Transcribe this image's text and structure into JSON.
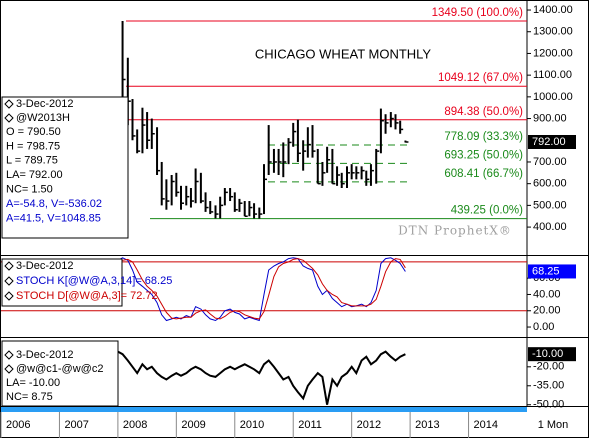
{
  "chart_data": [
    {
      "type": "ohlc",
      "title": "CHICAGO WHEAT MONTHLY",
      "watermark": "DTN ProphetX®",
      "date": "3-Dec-2012",
      "symbol": "@W2013H",
      "notes": [
        "O = 790.50",
        "H = 798.75",
        "L = 789.75",
        "LA= 792.00",
        "NC= 1.50",
        "A=-54.8, V=-536.02",
        "A=41.5, V=1048.85"
      ],
      "color": "#000000",
      "x": [
        2007.67,
        2007.75,
        2007.83,
        2007.92,
        2008.0,
        2008.08,
        2008.17,
        2008.25,
        2008.33,
        2008.42,
        2008.5,
        2008.58,
        2008.67,
        2008.75,
        2008.83,
        2008.92,
        2009.0,
        2009.08,
        2009.17,
        2009.25,
        2009.33,
        2009.42,
        2009.5,
        2009.58,
        2009.67,
        2009.75,
        2009.83,
        2009.92,
        2010.0,
        2010.08,
        2010.17,
        2010.25,
        2010.33,
        2010.42,
        2010.5,
        2010.58,
        2010.67,
        2010.75,
        2010.83,
        2010.92,
        2011.0,
        2011.08,
        2011.17,
        2011.25,
        2011.33,
        2011.42,
        2011.5,
        2011.58,
        2011.67,
        2011.75,
        2011.83,
        2011.92,
        2012.0,
        2012.08,
        2012.17,
        2012.25,
        2012.33,
        2012.42,
        2012.5,
        2012.58,
        2012.67,
        2012.75,
        2012.83,
        2012.92
      ],
      "high": [
        960,
        950,
        900,
        960,
        980,
        1349.5,
        1180,
        990,
        850,
        950,
        930,
        900,
        860,
        700,
        620,
        640,
        650,
        590,
        590,
        580,
        670,
        650,
        560,
        520,
        500,
        540,
        580,
        580,
        560,
        530,
        520,
        520,
        510,
        490,
        690,
        870,
        760,
        760,
        790,
        810,
        880,
        895,
        800,
        860,
        870,
        760,
        700,
        770,
        760,
        680,
        650,
        680,
        690,
        680,
        680,
        660,
        690,
        760,
        946,
        920,
        930,
        920,
        890,
        798.75
      ],
      "low": [
        820,
        830,
        820,
        850,
        870,
        900,
        870,
        800,
        740,
        740,
        760,
        760,
        640,
        500,
        480,
        500,
        540,
        480,
        500,
        490,
        510,
        510,
        470,
        460,
        440,
        440,
        500,
        520,
        470,
        470,
        450,
        450,
        440,
        439.25,
        460,
        640,
        650,
        640,
        630,
        690,
        770,
        700,
        660,
        720,
        720,
        600,
        590,
        650,
        600,
        590,
        580,
        580,
        620,
        620,
        620,
        590,
        590,
        600,
        740,
        830,
        860,
        850,
        830,
        789.75
      ],
      "close": [
        930,
        860,
        870,
        885,
        920,
        1080,
        980,
        820,
        750,
        870,
        800,
        830,
        660,
        530,
        520,
        610,
        560,
        510,
        540,
        520,
        610,
        520,
        490,
        470,
        460,
        500,
        560,
        540,
        480,
        510,
        450,
        490,
        460,
        460,
        620,
        700,
        700,
        700,
        700,
        790,
        840,
        740,
        750,
        780,
        750,
        600,
        650,
        710,
        600,
        640,
        600,
        650,
        650,
        650,
        660,
        620,
        660,
        750,
        890,
        880,
        900,
        880,
        850,
        792
      ],
      "ylim": [
        276,
        1437
      ],
      "yticks": [
        {
          "value": 1400,
          "label": "1400.00"
        },
        {
          "value": 1300,
          "label": "1300.00"
        },
        {
          "value": 1200,
          "label": "1200.00"
        },
        {
          "value": 1100,
          "label": "1100.00"
        },
        {
          "value": 1000,
          "label": "1000.00"
        },
        {
          "value": 900,
          "label": "900.00"
        },
        {
          "value": 700,
          "label": "700.00"
        },
        {
          "value": 600,
          "label": "600.00"
        },
        {
          "value": 500,
          "label": "500.00"
        },
        {
          "value": 400,
          "label": "400.00"
        }
      ],
      "levels": [
        {
          "value": 1349.5,
          "label": "1349.50 (100.0%)",
          "color": "#e8001c",
          "style": "solid"
        },
        {
          "value": 1049.12,
          "label": "1049.12 (67.0%)",
          "color": "#e8001c",
          "style": "solid"
        },
        {
          "value": 894.38,
          "label": "894.38 (50.0%)",
          "color": "#e8001c",
          "style": "solid"
        },
        {
          "value": 778.09,
          "label": "778.09 (33.3%)",
          "color": "#1a8a1a",
          "style": "dashed"
        },
        {
          "value": 693.25,
          "label": "693.25 (50.0%)",
          "color": "#1a8a1a",
          "style": "dashed"
        },
        {
          "value": 608.41,
          "label": "608.41 (66.7%)",
          "color": "#1a8a1a",
          "style": "dashed"
        },
        {
          "value": 439.25,
          "label": "439.25 (0.0%)",
          "color": "#1a8a1a",
          "style": "solid"
        }
      ],
      "last": {
        "value": 792,
        "label": "792.00",
        "color": "#000000"
      }
    },
    {
      "type": "line",
      "date": "3-Dec-2012",
      "x": [
        2007.67,
        2007.75,
        2007.83,
        2007.92,
        2008.0,
        2008.08,
        2008.17,
        2008.25,
        2008.33,
        2008.42,
        2008.5,
        2008.58,
        2008.67,
        2008.75,
        2008.83,
        2008.92,
        2009.0,
        2009.08,
        2009.17,
        2009.25,
        2009.33,
        2009.42,
        2009.5,
        2009.58,
        2009.67,
        2009.75,
        2009.83,
        2009.92,
        2010.0,
        2010.08,
        2010.17,
        2010.25,
        2010.33,
        2010.42,
        2010.5,
        2010.58,
        2010.67,
        2010.75,
        2010.83,
        2010.92,
        2011.0,
        2011.08,
        2011.17,
        2011.25,
        2011.33,
        2011.42,
        2011.5,
        2011.58,
        2011.67,
        2011.75,
        2011.83,
        2011.92,
        2012.0,
        2012.08,
        2012.17,
        2012.25,
        2012.33,
        2012.42,
        2012.5,
        2012.58,
        2012.67,
        2012.75,
        2012.83,
        2012.92
      ],
      "series": [
        {
          "name": "STOCH K[@W@A,3,14]= 68.25",
          "color": "#0000cc",
          "values": [
            80,
            76,
            78,
            80,
            82,
            85,
            82,
            70,
            55,
            50,
            45,
            40,
            30,
            15,
            8,
            10,
            12,
            10,
            14,
            12,
            25,
            22,
            15,
            10,
            8,
            12,
            20,
            22,
            18,
            16,
            10,
            12,
            10,
            8,
            40,
            70,
            75,
            78,
            80,
            84,
            85,
            84,
            75,
            72,
            70,
            50,
            40,
            45,
            35,
            30,
            25,
            28,
            25,
            26,
            28,
            25,
            30,
            45,
            78,
            84,
            85,
            82,
            78,
            68.25
          ]
        },
        {
          "name": "STOCH D[@W@A,3]= 72.72",
          "color": "#cc0000",
          "values": [
            78,
            78,
            78,
            78,
            80,
            82,
            83,
            80,
            70,
            58,
            50,
            45,
            38,
            28,
            18,
            11,
            10,
            11,
            12,
            12,
            17,
            20,
            21,
            16,
            11,
            10,
            13,
            18,
            20,
            19,
            15,
            13,
            11,
            10,
            19,
            39,
            62,
            74,
            78,
            80,
            83,
            84,
            82,
            77,
            72,
            64,
            53,
            45,
            40,
            37,
            30,
            28,
            26,
            26,
            26,
            26,
            28,
            34,
            50,
            68,
            80,
            84,
            83,
            72.72
          ]
        }
      ],
      "ylim": [
        -11,
        86
      ],
      "yticks": [
        {
          "value": 60,
          "label": "60.00"
        },
        {
          "value": 40,
          "label": "40.00"
        },
        {
          "value": 20,
          "label": "20.00"
        },
        {
          "value": 0,
          "label": "0.00"
        }
      ],
      "guides": [
        80,
        20
      ],
      "guide_color": "#cc0000",
      "last": {
        "value": 68.25,
        "label": "68.25",
        "color": "#0000ff"
      }
    },
    {
      "type": "line",
      "date": "3-Dec-2012",
      "notes": [
        "LA= -10.00",
        "NC= 8.75"
      ],
      "x": [
        2007.67,
        2007.75,
        2007.83,
        2007.92,
        2008.0,
        2008.08,
        2008.17,
        2008.25,
        2008.33,
        2008.42,
        2008.5,
        2008.58,
        2008.67,
        2008.75,
        2008.83,
        2008.92,
        2009.0,
        2009.08,
        2009.17,
        2009.25,
        2009.33,
        2009.42,
        2009.5,
        2009.58,
        2009.67,
        2009.75,
        2009.83,
        2009.92,
        2010.0,
        2010.08,
        2010.17,
        2010.25,
        2010.33,
        2010.42,
        2010.5,
        2010.58,
        2010.67,
        2010.75,
        2010.83,
        2010.92,
        2011.0,
        2011.08,
        2011.17,
        2011.25,
        2011.33,
        2011.42,
        2011.5,
        2011.58,
        2011.67,
        2011.75,
        2011.83,
        2011.92,
        2012.0,
        2012.08,
        2012.17,
        2012.25,
        2012.33,
        2012.42,
        2012.5,
        2012.58,
        2012.67,
        2012.75,
        2012.83,
        2012.92
      ],
      "series": [
        {
          "name": "@w@c1-@w@c2",
          "color": "#000000",
          "values": [
            -10,
            -12,
            -15,
            -12,
            -8,
            -10,
            -15,
            -20,
            -25,
            -18,
            -22,
            -20,
            -25,
            -28,
            -30,
            -27,
            -25,
            -27,
            -25,
            -22,
            -20,
            -22,
            -25,
            -27,
            -28,
            -25,
            -22,
            -20,
            -22,
            -20,
            -18,
            -20,
            -22,
            -25,
            -18,
            -15,
            -20,
            -25,
            -30,
            -28,
            -35,
            -40,
            -45,
            -35,
            -30,
            -25,
            -28,
            -50,
            -30,
            -35,
            -28,
            -25,
            -20,
            -25,
            -15,
            -12,
            -18,
            -15,
            -10,
            -8,
            -12,
            -15,
            -12,
            -10
          ]
        }
      ],
      "ylim": [
        -51,
        2
      ],
      "yticks": [
        {
          "value": -20,
          "label": "-20.00"
        },
        {
          "value": -35,
          "label": "-35.00"
        },
        {
          "value": -50,
          "label": "-50.00"
        }
      ],
      "last": {
        "value": -10,
        "label": "-10.00",
        "color": "#000000"
      },
      "xlim": [
        2006,
        2015
      ],
      "xticks": [
        2006,
        2007,
        2008,
        2009,
        2010,
        2011,
        2012,
        2013,
        2014
      ],
      "interval": "1 Mon"
    }
  ]
}
